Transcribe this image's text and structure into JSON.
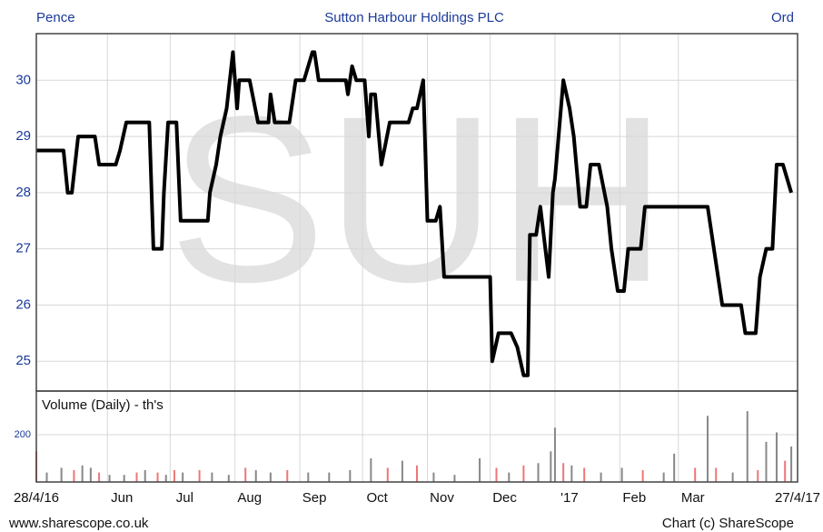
{
  "chart_data": {
    "type": "line",
    "title": "Sutton Harbour Holdings PLC",
    "y_label": "Pence",
    "share_class": "Ord",
    "watermark": "SUH",
    "footer_left": "www.sharescope.co.uk",
    "footer_right": "Chart (c) ShareScope",
    "xlim": [
      0,
      364
    ],
    "xticks": [
      {
        "value": 0,
        "label": "28/4/16"
      },
      {
        "value": 34,
        "label": "Jun"
      },
      {
        "value": 64,
        "label": "Jul"
      },
      {
        "value": 95,
        "label": "Aug"
      },
      {
        "value": 126,
        "label": "Sep"
      },
      {
        "value": 156,
        "label": "Oct"
      },
      {
        "value": 187,
        "label": "Nov"
      },
      {
        "value": 217,
        "label": "Dec"
      },
      {
        "value": 248,
        "label": "'17"
      },
      {
        "value": 279,
        "label": "Feb"
      },
      {
        "value": 307,
        "label": "Mar"
      },
      {
        "value": 364,
        "label": "27/4/17"
      }
    ],
    "ylim": [
      24.47,
      30.83
    ],
    "yticks": [
      25,
      26,
      27,
      28,
      29,
      30
    ],
    "grid": true,
    "series": [
      {
        "color": "#000000",
        "x": [
          0,
          13,
          15,
          17,
          20,
          28,
          30,
          38,
          40,
          43,
          54,
          56,
          60,
          61,
          63,
          67,
          69,
          82,
          83,
          86,
          88,
          91,
          94,
          96,
          97,
          102,
          106,
          111,
          112,
          114,
          121,
          124,
          128,
          132,
          133,
          135,
          148,
          149,
          151,
          153,
          157,
          159,
          160,
          162,
          165,
          169,
          178,
          180,
          182,
          185,
          187,
          191,
          193,
          195,
          217,
          218,
          221,
          227,
          230,
          233,
          235,
          236,
          239,
          241,
          245,
          247,
          248,
          252,
          255,
          257,
          260,
          263,
          265,
          269,
          273,
          275,
          278,
          281,
          283,
          289,
          291,
          321,
          325,
          328,
          337,
          339,
          344,
          346,
          349,
          352,
          354,
          357,
          361
        ],
        "values": [
          28.75,
          28.75,
          28,
          28,
          29,
          29,
          28.5,
          28.5,
          28.75,
          29.25,
          29.25,
          27,
          27,
          28,
          29.25,
          29.25,
          27.5,
          27.5,
          28,
          28.5,
          29,
          29.5,
          30.5,
          29.5,
          30,
          30,
          29.25,
          29.25,
          29.75,
          29.25,
          29.25,
          30,
          30,
          30.5,
          30.5,
          30,
          30,
          29.75,
          30.25,
          30,
          30,
          29,
          29.75,
          29.75,
          28.5,
          29.25,
          29.25,
          29.5,
          29.5,
          30,
          27.5,
          27.5,
          27.75,
          26.5,
          26.5,
          25,
          25.5,
          25.5,
          25.25,
          24.75,
          24.75,
          27.25,
          27.25,
          27.75,
          26.5,
          28,
          28.25,
          30,
          29.5,
          29,
          27.75,
          27.75,
          28.5,
          28.5,
          27.75,
          27,
          26.25,
          26.25,
          27,
          27,
          27.75,
          27.75,
          26.75,
          26,
          26,
          25.5,
          25.5,
          26.5,
          27,
          27,
          28.5,
          28.5,
          28
        ]
      }
    ],
    "volume": {
      "label": "Volume (Daily) - th's",
      "ylim": [
        0,
        385
      ],
      "yticks": [
        200
      ],
      "x": [
        0,
        5,
        12,
        18,
        22,
        26,
        30,
        35,
        42,
        48,
        52,
        58,
        62,
        66,
        70,
        78,
        84,
        92,
        100,
        105,
        112,
        120,
        130,
        140,
        150,
        160,
        168,
        175,
        182,
        190,
        200,
        212,
        220,
        226,
        233,
        240,
        246,
        248,
        252,
        256,
        262,
        270,
        280,
        290,
        300,
        305,
        315,
        321,
        325,
        333,
        340,
        345,
        349,
        354,
        358,
        361
      ],
      "values": [
        130,
        40,
        60,
        50,
        70,
        60,
        40,
        30,
        30,
        40,
        50,
        40,
        30,
        50,
        40,
        50,
        40,
        30,
        60,
        50,
        40,
        50,
        40,
        40,
        50,
        100,
        60,
        90,
        70,
        40,
        30,
        100,
        60,
        40,
        70,
        80,
        130,
        230,
        80,
        70,
        60,
        40,
        60,
        50,
        40,
        120,
        60,
        280,
        60,
        40,
        300,
        50,
        170,
        210,
        90,
        150
      ],
      "colors": [
        "#ee7777",
        "#888888",
        "#888888",
        "#ee7777",
        "#888888",
        "#888888",
        "#ee7777",
        "#888888",
        "#888888",
        "#ee7777",
        "#888888",
        "#ee7777",
        "#888888",
        "#ee7777",
        "#888888",
        "#ee7777",
        "#888888",
        "#888888",
        "#ee7777",
        "#888888",
        "#888888",
        "#ee7777",
        "#888888",
        "#888888",
        "#888888",
        "#888888",
        "#ee7777",
        "#888888",
        "#ee7777",
        "#888888",
        "#888888",
        "#888888",
        "#ee7777",
        "#888888",
        "#ee7777",
        "#888888",
        "#888888",
        "#888888",
        "#ee7777",
        "#888888",
        "#ee7777",
        "#888888",
        "#888888",
        "#ee7777",
        "#888888",
        "#888888",
        "#ee7777",
        "#888888",
        "#ee7777",
        "#888888",
        "#888888",
        "#ee7777",
        "#888888",
        "#888888",
        "#ee7777",
        "#888888"
      ]
    }
  }
}
